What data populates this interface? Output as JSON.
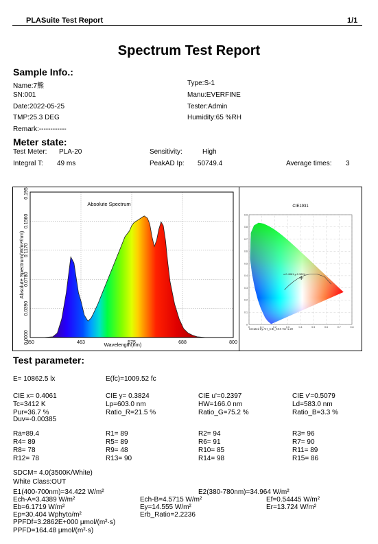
{
  "header": {
    "app_title": "PLASuite Test Report",
    "page": "1/1"
  },
  "title": "Spectrum Test Report",
  "sample": {
    "heading": "Sample Info.:",
    "name": "Name:7熊",
    "type": "Type:S-1",
    "sn": "SN:001",
    "manu": "Manu:EVERFINE",
    "date": "Date:2022-05-25",
    "tester": "Tester:Admin",
    "tmp": "TMP:25.3 DEG",
    "humidity": "Humidity:65 %RH",
    "remark": "Remark:------------"
  },
  "meter": {
    "heading": "Meter state:",
    "test_meter_label": "Test Meter:",
    "test_meter_value": "PLA-20",
    "sensitivity_label": "Sensitivity:",
    "sensitivity_value": "High",
    "integral_label": "Integral T:",
    "integral_value": "49 ms",
    "peakad_label": "PeakAD Ip:",
    "peakad_value": "50749.4",
    "avg_label": "Average times:",
    "avg_value": "3"
  },
  "spectrum_chart": {
    "title": "Absolute Spectrum",
    "ylabel": "Absolute Spectrum(W/m²/nm)",
    "xlabel": "Wavelength(nm)",
    "yticks": [
      "0.0000",
      "0.0390",
      "0.0780",
      "0.1170",
      "0.1560",
      "0.1950"
    ],
    "xticks": [
      "350",
      "463",
      "575",
      "688",
      "800"
    ]
  },
  "chart_data": {
    "type": "area",
    "title": "Absolute Spectrum",
    "xlabel": "Wavelength(nm)",
    "ylabel": "Absolute Spectrum(W/m²/nm)",
    "xlim": [
      350,
      800
    ],
    "ylim": [
      0,
      0.195
    ],
    "x": [
      350,
      380,
      400,
      410,
      420,
      430,
      440,
      447,
      452,
      457,
      463,
      470,
      478,
      485,
      490,
      500,
      510,
      520,
      530,
      540,
      550,
      560,
      570,
      575,
      580,
      590,
      600,
      603,
      610,
      615,
      620,
      625,
      630,
      635,
      640,
      645,
      650,
      655,
      660,
      670,
      680,
      690,
      700,
      710,
      720,
      740,
      760,
      780,
      800
    ],
    "y": [
      0,
      0,
      0.001,
      0.006,
      0.025,
      0.06,
      0.108,
      0.1,
      0.08,
      0.06,
      0.048,
      0.03,
      0.022,
      0.026,
      0.032,
      0.045,
      0.06,
      0.075,
      0.09,
      0.105,
      0.12,
      0.135,
      0.143,
      0.15,
      0.154,
      0.158,
      0.162,
      0.163,
      0.16,
      0.152,
      0.135,
      0.122,
      0.13,
      0.145,
      0.155,
      0.15,
      0.13,
      0.1,
      0.075,
      0.045,
      0.025,
      0.012,
      0.006,
      0.003,
      0.001,
      0,
      0,
      0,
      0
    ],
    "grid": true
  },
  "cie_chart": {
    "title": "CIE1931",
    "footer": "Created by AH_CIE_XXX Ver 1.20",
    "xticks": [
      "0",
      "0.1",
      "0.2",
      "0.3",
      "0.4",
      "0.5",
      "0.6",
      "0.7",
      "0.8"
    ],
    "yticks": [
      "0",
      "0.1",
      "0.2",
      "0.3",
      "0.4",
      "0.5",
      "0.6",
      "0.7",
      "0.8",
      "0.9"
    ],
    "point": {
      "x": 0.4061,
      "y": 0.3824
    },
    "point_label": "x:0.4061,y:0.3824"
  },
  "test": {
    "heading": "Test parameter:",
    "e": "E=  10862.5 lx",
    "efc": "E(fc)=1009.52 fc",
    "row1": [
      "CIE x= 0.4061",
      "CIE y= 0.3824",
      "CIE u'=0.2397",
      "CIE v'=0.5079"
    ],
    "row2": [
      "Tc=3412 K",
      "Lp=603.0 nm",
      "HW=166.0 nm",
      "Ld=583.0 nm"
    ],
    "row3": [
      "Pur=36.7 %",
      "Ratio_R=21.5 %",
      "Ratio_G=75.2 %",
      "Ratio_B=3.3 %"
    ],
    "duv": "Duv=-0.00385",
    "ra_rows": [
      [
        "Ra=89.4",
        "R1= 89",
        "R2= 94",
        "R3= 96"
      ],
      [
        "R4= 89",
        "R5= 89",
        "R6= 91",
        "R7= 90"
      ],
      [
        "R8= 78",
        "R9= 48",
        "R10= 85",
        "R11= 89"
      ],
      [
        "R12= 78",
        "R13= 90",
        "R14= 98",
        "R15= 86"
      ]
    ],
    "sdcm": "SDCM= 4.0(3500K/White)",
    "white_class": "White Class:OUT",
    "e1": "E1(400-700nm)=34.422 W/m²",
    "e2": "E2(380-780nm)=34.964 W/m²",
    "ech_a": "Ech-A=3.4389 W/m²",
    "ech_b": "Ech-B=4.5715 W/m²",
    "ef": "Ef=0.54445 W/m²",
    "eb": "Eb=6.1719 W/m²",
    "ey": "Ey=14.555 W/m²",
    "er": "Er=13.724 W/m²",
    "ep": "Ep=30.404 Wphyto/m²",
    "erb": "Erb_Ratio=2.2236",
    "ppfdf": "PPFDf=3.2862E+000 μmol/(m²·s)",
    "ppfd": "PPFD=164.48 μmol/(m²·s)"
  }
}
